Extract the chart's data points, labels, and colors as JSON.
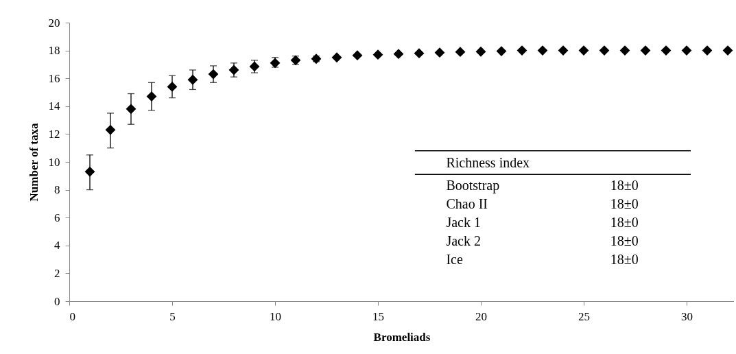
{
  "chart_data": {
    "type": "scatter",
    "xlabel": "Bromeliads",
    "ylabel": "Number of taxa",
    "x": [
      1,
      2,
      3,
      4,
      5,
      6,
      7,
      8,
      9,
      10,
      11,
      12,
      13,
      14,
      15,
      16,
      17,
      18,
      19,
      20,
      21,
      22,
      23,
      24,
      25,
      26,
      27,
      28,
      29,
      30,
      31,
      32
    ],
    "series": [
      {
        "color": "#000000",
        "values": [
          9.3,
          12.3,
          13.8,
          14.7,
          15.4,
          15.9,
          16.3,
          16.6,
          16.85,
          17.1,
          17.3,
          17.4,
          17.5,
          17.65,
          17.7,
          17.75,
          17.8,
          17.85,
          17.9,
          17.92,
          17.95,
          18,
          18,
          18,
          18,
          18,
          18,
          18,
          18,
          18,
          18,
          18
        ],
        "errors": [
          [
            8.0,
            10.5
          ],
          [
            11.0,
            13.5
          ],
          [
            12.7,
            14.9
          ],
          [
            13.7,
            15.7
          ],
          [
            14.6,
            16.2
          ],
          [
            15.2,
            16.6
          ],
          [
            15.7,
            16.9
          ],
          [
            16.1,
            17.1
          ],
          [
            16.4,
            17.3
          ],
          [
            16.8,
            17.5
          ],
          [
            17.0,
            17.6
          ],
          [
            17.2,
            17.6
          ],
          null,
          null,
          null,
          null,
          null,
          null,
          null,
          null,
          null,
          null,
          null,
          null,
          null,
          null,
          null,
          null,
          null,
          null,
          null,
          null
        ]
      }
    ],
    "marker": "diamond",
    "xlim": [
      0,
      32.3
    ],
    "ylim": [
      0,
      20
    ],
    "xticks": [
      0,
      5,
      10,
      15,
      20,
      25,
      30
    ],
    "yticks": [
      0,
      2,
      4,
      6,
      8,
      10,
      12,
      14,
      16,
      18,
      20
    ],
    "annotations": [
      "Richness index",
      "Bootstrap",
      "18±0",
      "Chao II",
      "18±0",
      "Jack 1",
      "18±0",
      "Jack 2",
      "18±0",
      "Ice",
      "18±0"
    ]
  }
}
